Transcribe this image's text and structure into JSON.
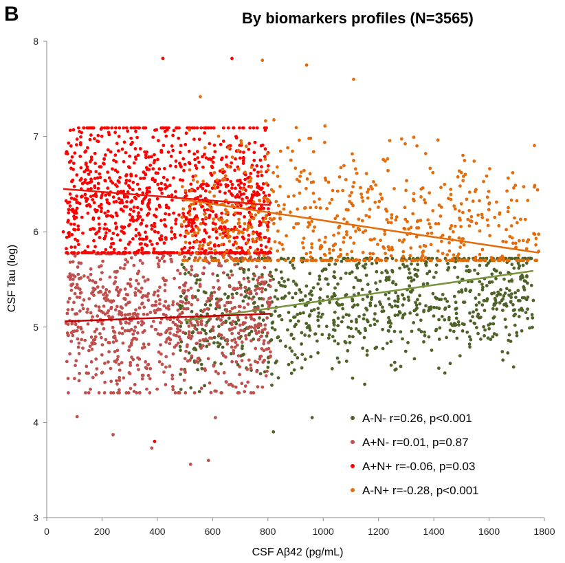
{
  "panel_letter": "B",
  "chart_data": {
    "type": "scatter",
    "title": "By biomarkers profiles (N=3565)",
    "xlabel": "CSF Aβ42 (pg/mL)",
    "ylabel": "CSF Tau (log)",
    "xlim": [
      0,
      1800
    ],
    "ylim": [
      3,
      8
    ],
    "xticks": [
      "0",
      "200",
      "400",
      "600",
      "800",
      "1000",
      "1200",
      "1400",
      "1600",
      "1800"
    ],
    "yticks": [
      "3",
      "4",
      "5",
      "6",
      "7",
      "8"
    ],
    "grid": false,
    "legend_position": "bottom-right",
    "series": [
      {
        "name": "A-N-",
        "label": "A-N-  r=0.26,  p<0.001",
        "color": "#4f6228",
        "trend_color": "#77933c",
        "trendline": {
          "x": [
            500,
            1760
          ],
          "y": [
            5.07,
            5.59
          ]
        },
        "cloud": {
          "x": [
            480,
            1760
          ],
          "y_center": [
            5.05,
            5.45
          ],
          "y_spread": 0.33,
          "count": 900
        },
        "extra_points": [
          {
            "x": 1670,
            "y": 4.86
          },
          {
            "x": 1760,
            "y": 5.28
          },
          {
            "x": 960,
            "y": 4.05
          },
          {
            "x": 820,
            "y": 3.9
          },
          {
            "x": 1150,
            "y": 4.4
          },
          {
            "x": 1260,
            "y": 4.55
          }
        ]
      },
      {
        "name": "A+N-",
        "label": "A+N-  r=0.01, p=0.87",
        "color": "#c0504d",
        "trend_color": "#c00000",
        "trendline": {
          "x": [
            65,
            810
          ],
          "y": [
            5.06,
            5.14
          ]
        },
        "cloud": {
          "x": [
            70,
            810
          ],
          "y_center": [
            5.1,
            5.1
          ],
          "y_spread": 0.42,
          "count": 850
        },
        "extra_points": [
          {
            "x": 110,
            "y": 4.06
          },
          {
            "x": 240,
            "y": 3.87
          },
          {
            "x": 520,
            "y": 3.56
          },
          {
            "x": 585,
            "y": 3.6
          },
          {
            "x": 380,
            "y": 3.73
          },
          {
            "x": 610,
            "y": 4.05
          }
        ]
      },
      {
        "name": "A+N+",
        "label": "A+N+  r=-0.06, p=0.03",
        "color": "#ff0000",
        "trend_color": "#e8170c",
        "trendline": {
          "x": [
            60,
            810
          ],
          "y": [
            6.45,
            6.28
          ]
        },
        "cloud": {
          "x": [
            70,
            810
          ],
          "y_center": [
            6.35,
            6.28
          ],
          "y_spread": 0.5,
          "count": 1100
        },
        "extra_points": [
          {
            "x": 390,
            "y": 3.8
          },
          {
            "x": 60,
            "y": 6.0
          },
          {
            "x": 420,
            "y": 7.82
          },
          {
            "x": 670,
            "y": 7.82
          }
        ]
      },
      {
        "name": "A-N+",
        "label": "A-N+  r=-0.28, p<0.001",
        "color": "#e46c0a",
        "trend_color": "#e46c0a",
        "trendline": {
          "x": [
            490,
            1780
          ],
          "y": [
            6.34,
            5.78
          ]
        },
        "cloud": {
          "x": [
            480,
            1780
          ],
          "y_center": [
            6.2,
            5.95
          ],
          "y_spread": 0.42,
          "count": 700
        },
        "extra_points": [
          {
            "x": 780,
            "y": 7.8
          },
          {
            "x": 940,
            "y": 7.75
          },
          {
            "x": 1110,
            "y": 7.6
          },
          {
            "x": 1770,
            "y": 5.93
          },
          {
            "x": 1650,
            "y": 5.9
          }
        ]
      }
    ]
  }
}
